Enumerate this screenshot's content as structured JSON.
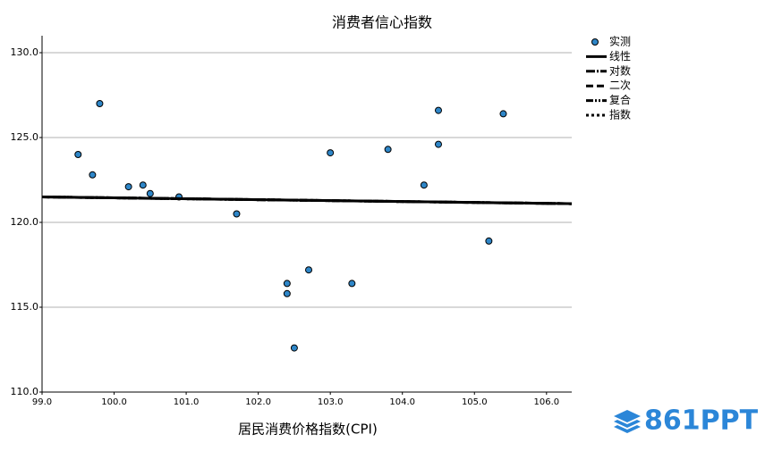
{
  "chart_data": {
    "type": "scatter",
    "title": "消费者信心指数",
    "x_label": "居民消费价格指数(CPI)",
    "xlim": [
      99.0,
      106.35
    ],
    "ylim": [
      110,
      131
    ],
    "xticks": [
      {
        "value": 99,
        "label": "99.0"
      },
      {
        "value": 100,
        "label": "100.0"
      },
      {
        "value": 101,
        "label": "101.0"
      },
      {
        "value": 102,
        "label": "102.0"
      },
      {
        "value": 103,
        "label": "103.0"
      },
      {
        "value": 104,
        "label": "104.0"
      },
      {
        "value": 105,
        "label": "105.0"
      },
      {
        "value": 106,
        "label": "106.0"
      }
    ],
    "yticks": [
      {
        "value": 110,
        "label": "110.0"
      },
      {
        "value": 115,
        "label": "115.0"
      },
      {
        "value": 120,
        "label": "120.0"
      },
      {
        "value": 125,
        "label": "125.0"
      },
      {
        "value": 130,
        "label": "130.0"
      }
    ],
    "grid": true,
    "legend": "right",
    "series": [
      {
        "name": "实测",
        "mode": "markers",
        "color": "#2e86c8",
        "x": [
          99.5,
          99.7,
          99.8,
          100.2,
          100.4,
          100.5,
          100.9,
          101.7,
          102.4,
          102.4,
          102.7,
          102.5,
          103.0,
          103.3,
          103.8,
          104.3,
          104.5,
          104.5,
          105.2,
          105.4
        ],
        "values": [
          124.0,
          122.8,
          127.0,
          122.1,
          122.2,
          121.7,
          121.5,
          120.5,
          116.4,
          115.8,
          117.2,
          112.6,
          124.1,
          116.4,
          124.3,
          122.2,
          126.6,
          124.6,
          118.9,
          126.4
        ]
      },
      {
        "name": "线性",
        "mode": "lines",
        "color": "#000000",
        "dash": "none",
        "x": [
          99.0,
          106.35
        ],
        "values": [
          121.5,
          121.1
        ]
      },
      {
        "name": "对数",
        "mode": "lines",
        "color": "#000000",
        "dash": "10 2 2 2",
        "x": [
          99.0,
          106.35
        ],
        "values": [
          121.5,
          121.1
        ]
      },
      {
        "name": "二次",
        "mode": "lines",
        "color": "#000000",
        "dash": "8 4",
        "x": [
          99.0,
          106.35
        ],
        "values": [
          121.5,
          121.1
        ]
      },
      {
        "name": "复合",
        "mode": "lines",
        "color": "#000000",
        "dash": "8 2 2 2 2 2",
        "x": [
          99.0,
          106.35
        ],
        "values": [
          121.5,
          121.1
        ]
      },
      {
        "name": "指数",
        "mode": "lines",
        "color": "#000000",
        "dash": "3 3",
        "x": [
          99.0,
          106.35
        ],
        "values": [
          121.5,
          121.1
        ]
      }
    ],
    "watermark": "861PPT"
  }
}
